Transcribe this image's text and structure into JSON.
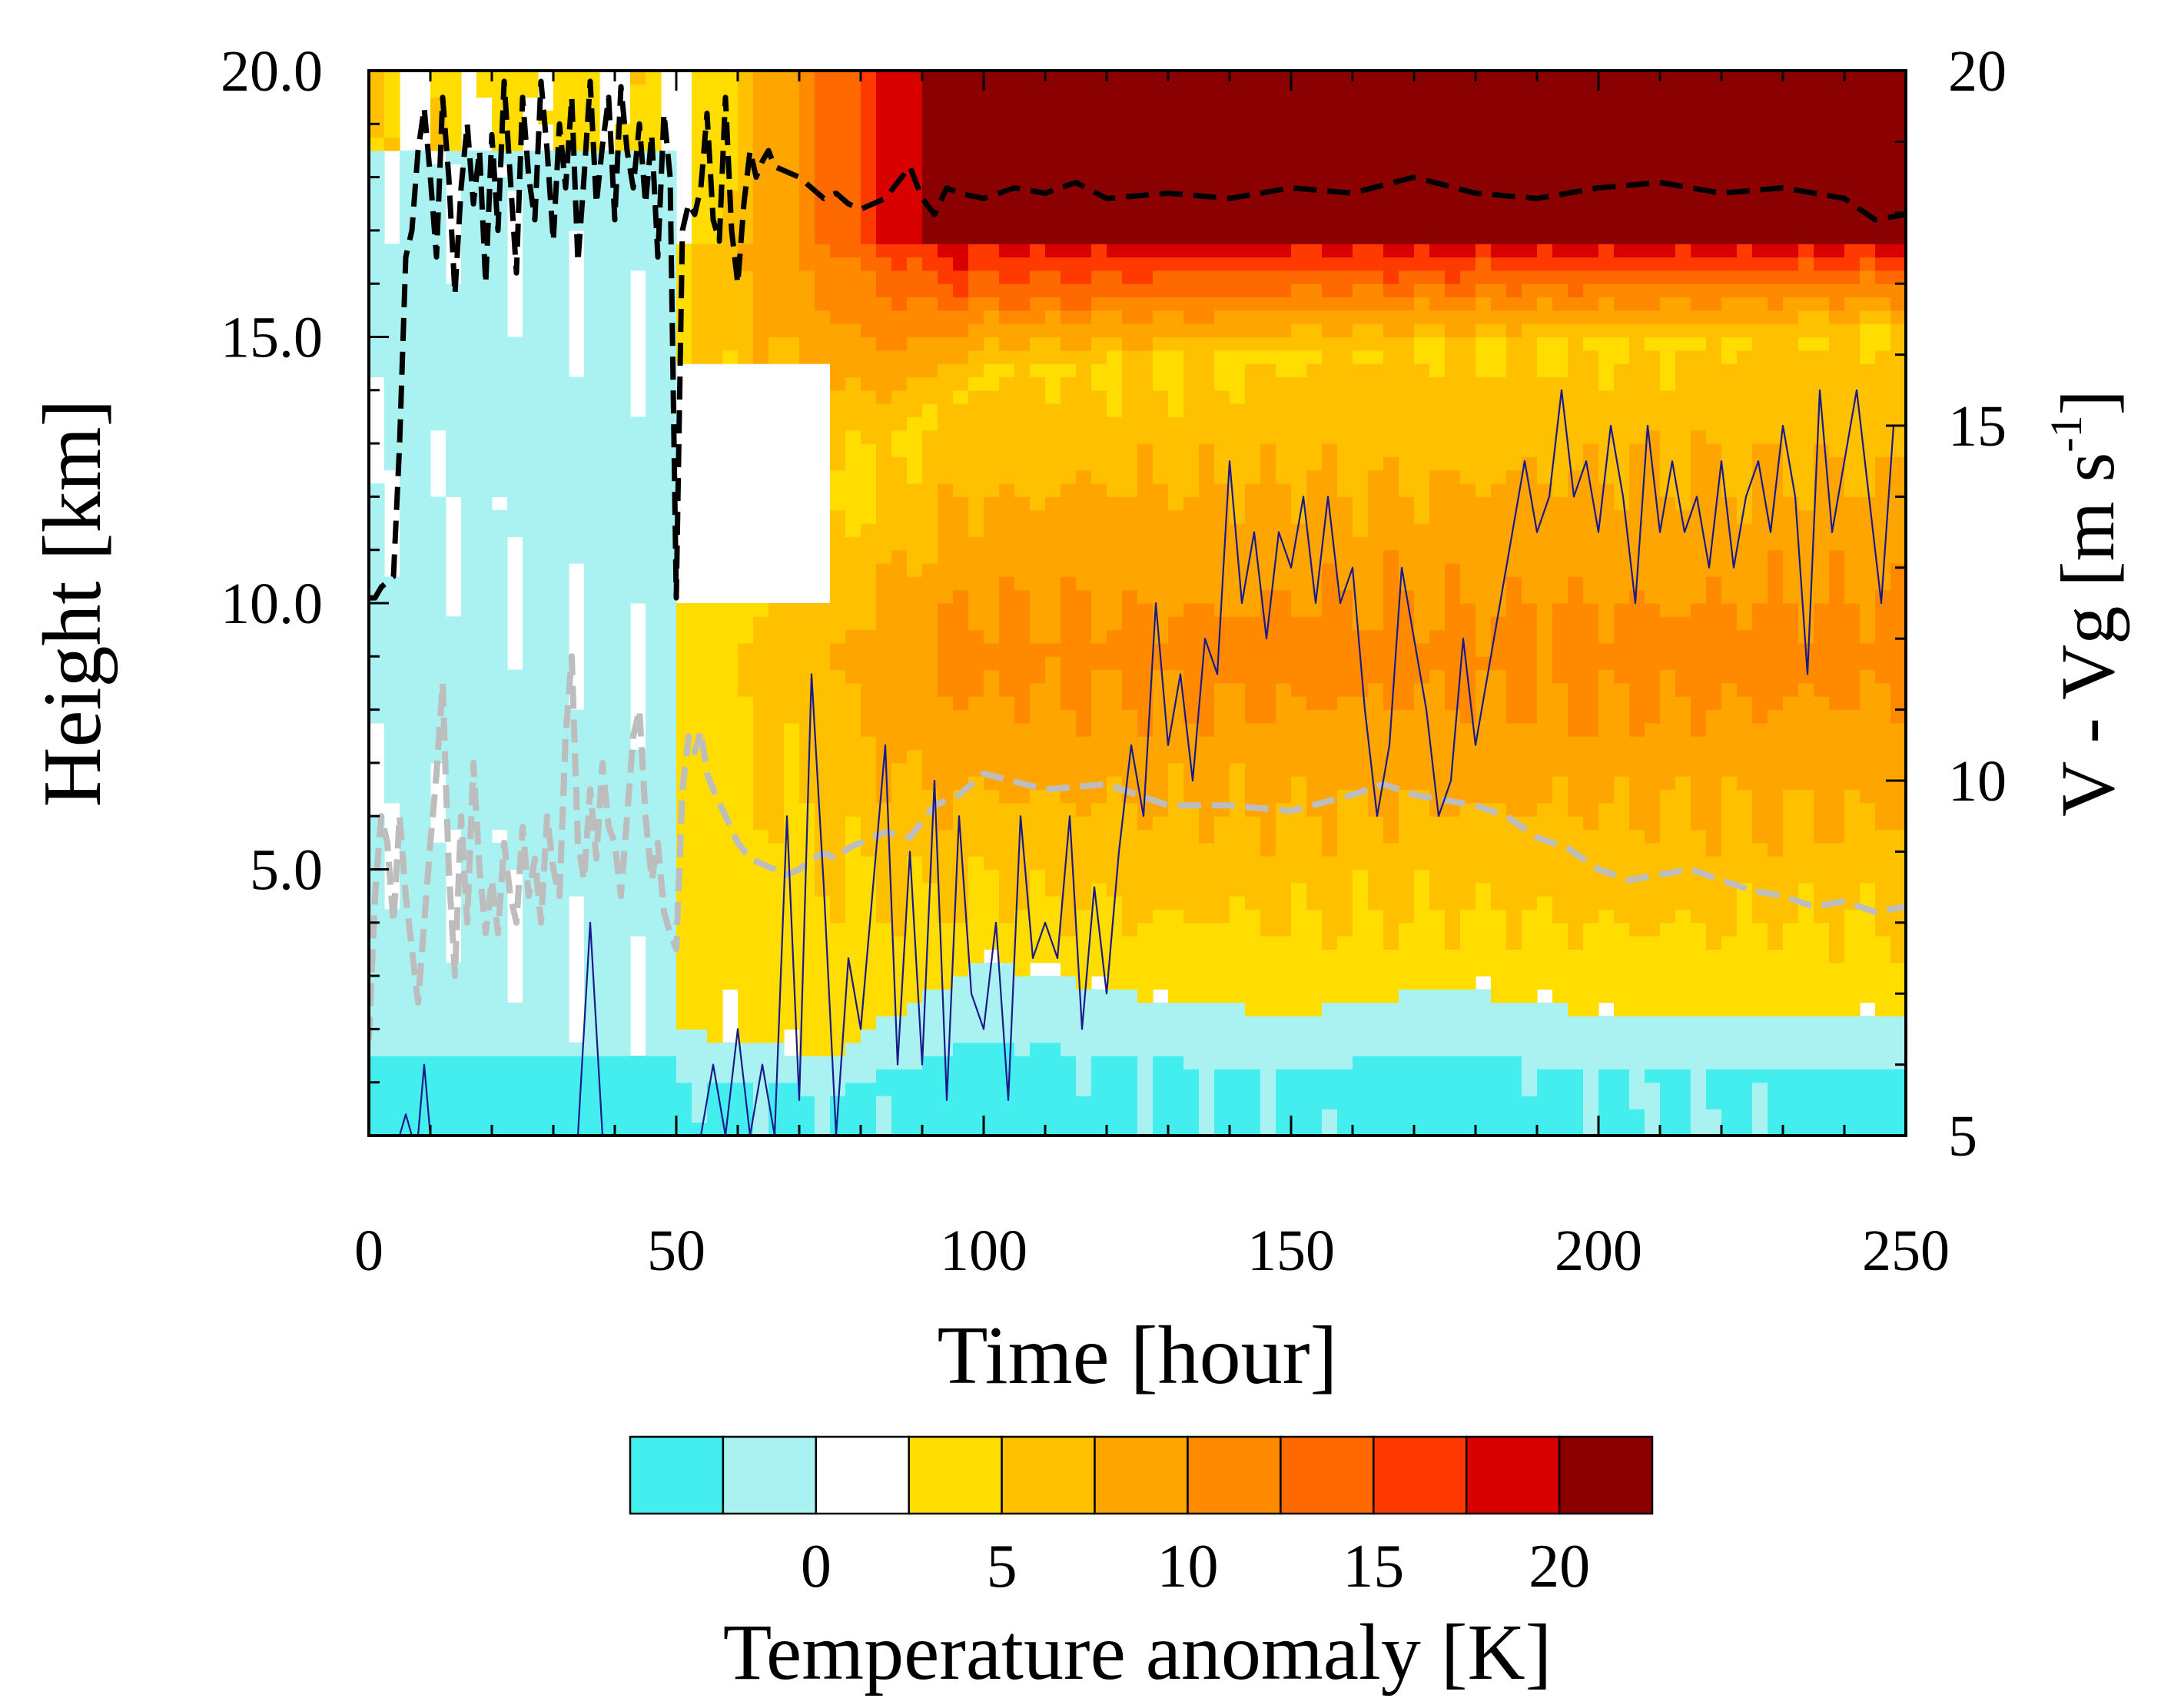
{
  "chart_data": {
    "type": "heatmap",
    "title": "",
    "xlabel": "Time [hour]",
    "ylabel_left": "Height [km]",
    "ylabel_right_main": "V - Vg [m s",
    "ylabel_right_sup": "-1",
    "ylabel_right_close": "]",
    "xlim": [
      0,
      250
    ],
    "ylim_left": [
      0,
      20
    ],
    "ylim_right": [
      5,
      20
    ],
    "x_ticks": [
      0,
      50,
      100,
      150,
      200,
      250
    ],
    "x_tick_labels": [
      "0",
      "50",
      "100",
      "150",
      "200",
      "250"
    ],
    "y_left_ticks": [
      5,
      10,
      15,
      20
    ],
    "y_left_tick_labels": [
      "5.0",
      "10.0",
      "15.0",
      "20.0"
    ],
    "y_right_ticks": [
      5,
      10,
      15,
      20
    ],
    "y_right_tick_labels": [
      "5",
      "10",
      "15",
      "20"
    ],
    "colorbar": {
      "title": "Temperature anomaly [K]",
      "colors": [
        "#44eeee",
        "#aaf2f2",
        "#ffffff",
        "#ffdd00",
        "#ffc000",
        "#ffa500",
        "#ff8a00",
        "#ff6a00",
        "#ff3a00",
        "#d90000",
        "#8b0000"
      ],
      "tick_values": [
        0,
        5,
        10,
        15,
        20
      ],
      "tick_labels": [
        "0",
        "5",
        "10",
        "15",
        "20"
      ],
      "boundaries": [
        -5,
        -2.5,
        0,
        2.5,
        5,
        7.5,
        10,
        12.5,
        15,
        17.5,
        20,
        22.5
      ]
    },
    "field_description_points": {
      "cold_level_km_vs_time": [
        [
          0,
          2.0
        ],
        [
          50,
          2.0
        ],
        [
          75,
          1.5
        ],
        [
          100,
          3.3
        ],
        [
          125,
          2.6
        ],
        [
          150,
          2.3
        ],
        [
          175,
          2.8
        ],
        [
          200,
          2.3
        ],
        [
          225,
          2.2
        ],
        [
          250,
          2.3
        ]
      ],
      "warm_top_km_vs_time": [
        [
          0,
          0
        ],
        [
          50,
          10
        ],
        [
          75,
          12
        ],
        [
          100,
          14.2
        ],
        [
          150,
          14.6
        ],
        [
          200,
          14.8
        ],
        [
          250,
          15.0
        ]
      ],
      "max_core_km": [
        16.8,
        19.0
      ]
    },
    "series": [
      {
        "name": "tropopause height (black dashed, left axis)",
        "axis": "left",
        "x": [
          0,
          1,
          2,
          3,
          4,
          5,
          6,
          7,
          8,
          9,
          10,
          11,
          12,
          13,
          14,
          15,
          16,
          17,
          18,
          19,
          20,
          21,
          22,
          23,
          24,
          25,
          26,
          27,
          28,
          29,
          30,
          31,
          32,
          33,
          34,
          35,
          36,
          37,
          38,
          39,
          40,
          41,
          42,
          43,
          44,
          45,
          46,
          47,
          48,
          49,
          50,
          51,
          52,
          53,
          54,
          55,
          56,
          57,
          58,
          59,
          60,
          61,
          62,
          63,
          64,
          65,
          66,
          68,
          70,
          72,
          74,
          76,
          78,
          80,
          82,
          84,
          86,
          88,
          90,
          92,
          94,
          96,
          100,
          105,
          110,
          115,
          120,
          130,
          140,
          150,
          160,
          170,
          180,
          190,
          200,
          210,
          220,
          230,
          240,
          245,
          250
        ],
        "y": [
          10.1,
          10.1,
          10.3,
          10.4,
          10.5,
          13.0,
          16.5,
          17.0,
          18.5,
          19.3,
          18.0,
          16.5,
          19.5,
          18.0,
          15.8,
          17.8,
          19.0,
          17.5,
          18.5,
          16.0,
          18.8,
          17.0,
          19.8,
          18.0,
          16.2,
          19.5,
          18.0,
          17.2,
          19.8,
          18.5,
          16.8,
          19.0,
          17.8,
          19.5,
          16.4,
          18.0,
          19.8,
          17.5,
          18.6,
          19.5,
          17.2,
          19.7,
          18.5,
          17.8,
          19.0,
          17.5,
          18.8,
          16.5,
          19.2,
          18.0,
          10.1,
          17.0,
          17.5,
          17.3,
          17.8,
          19.2,
          17.2,
          16.8,
          19.5,
          17.0,
          16.0,
          17.5,
          18.5,
          18.0,
          18.3,
          18.5,
          18.2,
          18.1,
          18.0,
          17.8,
          17.6,
          17.7,
          17.5,
          17.4,
          17.5,
          17.6,
          17.9,
          18.2,
          17.6,
          17.3,
          17.8,
          17.7,
          17.6,
          17.8,
          17.7,
          17.9,
          17.6,
          17.7,
          17.6,
          17.8,
          17.7,
          18.0,
          17.7,
          17.6,
          17.8,
          17.9,
          17.7,
          17.8,
          17.6,
          17.2,
          17.3
        ]
      },
      {
        "name": "secondary height (gray dashed, left axis)",
        "axis": "left",
        "x": [
          0,
          1,
          2,
          3,
          4,
          5,
          6,
          7,
          8,
          9,
          10,
          11,
          12,
          13,
          14,
          15,
          16,
          17,
          18,
          19,
          20,
          21,
          22,
          23,
          24,
          25,
          26,
          27,
          28,
          29,
          30,
          31,
          32,
          33,
          34,
          35,
          36,
          37,
          38,
          39,
          40,
          41,
          42,
          43,
          44,
          45,
          46,
          47,
          48,
          49,
          50,
          51,
          52,
          53,
          54,
          55,
          56,
          58,
          60,
          62,
          64,
          66,
          68,
          70,
          72,
          74,
          76,
          78,
          80,
          84,
          88,
          92,
          96,
          100,
          110,
          120,
          130,
          140,
          150,
          160,
          165,
          170,
          180,
          185,
          190,
          195,
          200,
          205,
          210,
          215,
          220,
          225,
          230,
          235,
          240,
          245,
          250
        ],
        "y": [
          1.8,
          4.5,
          6.0,
          5.5,
          4.0,
          6.0,
          4.5,
          3.5,
          2.5,
          4.0,
          5.5,
          6.8,
          8.5,
          5.0,
          3.0,
          6.0,
          4.0,
          7.0,
          5.0,
          3.8,
          4.8,
          3.8,
          5.5,
          4.5,
          4.0,
          5.8,
          4.5,
          5.2,
          4.0,
          6.0,
          5.0,
          4.5,
          7.5,
          9.0,
          5.5,
          4.8,
          6.5,
          5.2,
          7.0,
          5.8,
          5.5,
          4.5,
          6.0,
          7.5,
          8.0,
          6.0,
          4.8,
          5.5,
          4.2,
          3.8,
          3.5,
          6.5,
          7.5,
          7.2,
          7.6,
          6.8,
          6.5,
          6.0,
          5.5,
          5.2,
          5.1,
          5.0,
          4.9,
          5.0,
          5.2,
          5.3,
          5.2,
          5.4,
          5.5,
          5.7,
          5.6,
          6.2,
          6.4,
          6.8,
          6.5,
          6.6,
          6.2,
          6.2,
          6.1,
          6.4,
          6.6,
          6.4,
          6.2,
          6.0,
          5.6,
          5.4,
          5.0,
          4.8,
          4.9,
          5.0,
          4.8,
          4.6,
          4.5,
          4.3,
          4.4,
          4.2,
          4.3
        ]
      },
      {
        "name": "V - Vg (thin blue, right axis)",
        "axis": "right",
        "x": [
          0,
          5,
          6,
          7,
          8,
          9,
          10,
          12,
          14,
          16,
          18,
          20,
          22,
          24,
          26,
          28,
          30,
          32,
          34,
          36,
          38,
          40,
          42,
          44,
          46,
          48,
          50,
          52,
          54,
          56,
          58,
          60,
          62,
          64,
          66,
          68,
          70,
          72,
          74,
          76,
          78,
          80,
          82,
          84,
          86,
          88,
          90,
          92,
          94,
          96,
          98,
          100,
          102,
          104,
          106,
          108,
          110,
          112,
          114,
          116,
          118,
          120,
          122,
          124,
          126,
          128,
          130,
          132,
          134,
          136,
          138,
          140,
          142,
          144,
          146,
          148,
          150,
          152,
          154,
          156,
          158,
          160,
          162,
          164,
          166,
          168,
          170,
          172,
          174,
          176,
          178,
          180,
          182,
          184,
          186,
          188,
          190,
          192,
          194,
          196,
          198,
          200,
          202,
          204,
          206,
          208,
          210,
          212,
          214,
          216,
          218,
          220,
          222,
          224,
          226,
          228,
          230,
          232,
          234,
          236,
          238,
          240,
          242,
          244,
          246,
          248,
          250
        ],
        "y": [
          5.0,
          5.0,
          5.3,
          5.0,
          5.0,
          6.0,
          5.0,
          5.0,
          5.0,
          5.0,
          5.0,
          5.0,
          5.0,
          5.0,
          5.0,
          5.0,
          5.0,
          5.0,
          5.0,
          8.0,
          5.0,
          5.0,
          5.0,
          5.0,
          5.0,
          5.0,
          5.0,
          5.0,
          5.0,
          6.0,
          5.0,
          6.5,
          5.0,
          6.0,
          5.0,
          9.5,
          5.5,
          11.5,
          8.5,
          5.0,
          7.5,
          6.5,
          8.5,
          10.5,
          6.0,
          9.0,
          6.0,
          10.0,
          5.5,
          9.5,
          7.0,
          6.5,
          8.0,
          5.5,
          9.5,
          7.5,
          8.0,
          7.5,
          9.5,
          6.5,
          8.5,
          7.0,
          9.0,
          10.5,
          9.5,
          12.5,
          10.5,
          11.5,
          10.0,
          12.0,
          11.5,
          14.5,
          12.5,
          13.5,
          12.0,
          13.5,
          13.0,
          14.0,
          12.5,
          14.0,
          12.5,
          13.0,
          11.0,
          9.5,
          10.5,
          13.0,
          12.0,
          11.0,
          9.5,
          10.0,
          12.0,
          10.5,
          11.5,
          12.5,
          13.5,
          14.5,
          13.5,
          14.0,
          15.5,
          14.0,
          14.5,
          13.5,
          15.0,
          14.0,
          12.5,
          15.0,
          13.5,
          14.5,
          13.5,
          14.0,
          13.0,
          14.5,
          13.0,
          14.0,
          14.5,
          13.5,
          15.0,
          14.0,
          11.5,
          15.5,
          13.5,
          14.5,
          15.5,
          14.0,
          12.5,
          15.0,
          15.0
        ]
      }
    ]
  }
}
